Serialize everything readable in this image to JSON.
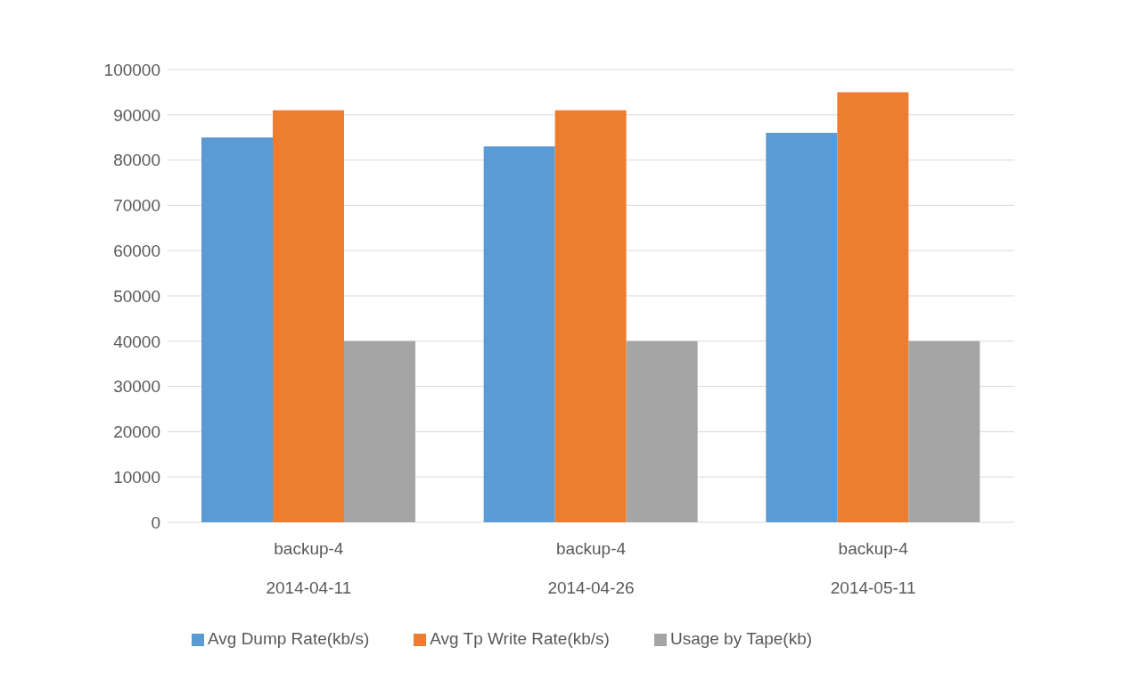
{
  "chart_data": {
    "type": "bar",
    "categories": [
      "backup-4\n2014-04-11",
      "backup-4\n2014-04-26",
      "backup-4\n2014-05-11"
    ],
    "series": [
      {
        "name": "Avg Dump Rate(kb/s)",
        "color": "#5b9bd5",
        "values": [
          85000,
          83000,
          86000
        ]
      },
      {
        "name": "Avg Tp Write Rate(kb/s)",
        "color": "#ed7d31",
        "values": [
          91000,
          91000,
          95000
        ]
      },
      {
        "name": "Usage by Tape(kb)",
        "color": "#a5a5a5",
        "values": [
          40000,
          40000,
          40000
        ]
      }
    ],
    "ylim": [
      0,
      100000
    ],
    "yticks": [
      0,
      10000,
      20000,
      30000,
      40000,
      50000,
      60000,
      70000,
      80000,
      90000,
      100000
    ],
    "grid": "y",
    "legend": "bottom"
  }
}
